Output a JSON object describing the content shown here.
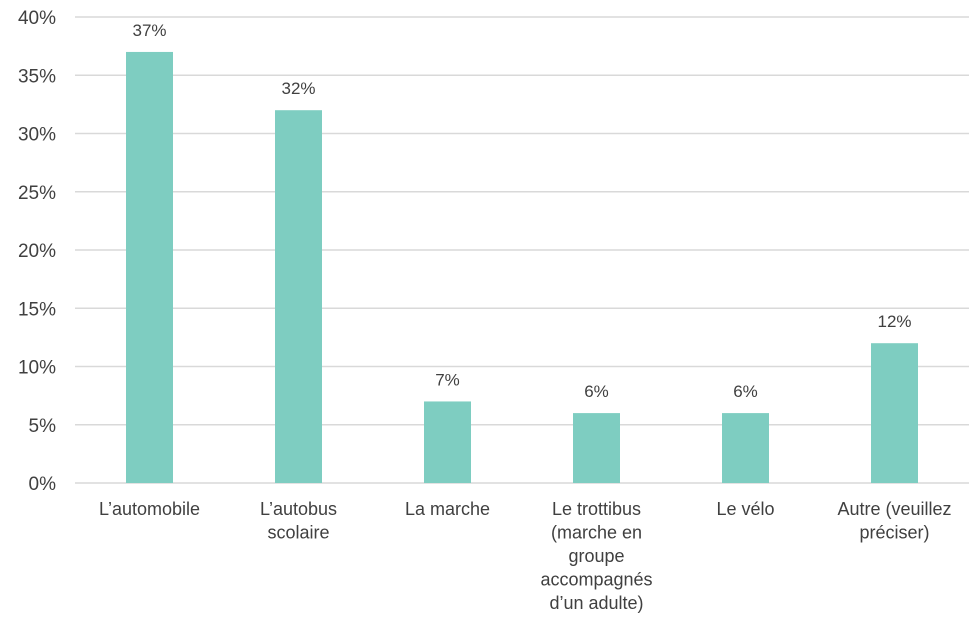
{
  "chart_data": {
    "type": "bar",
    "title": "",
    "xlabel": "",
    "ylabel": "",
    "categories": [
      [
        "L’automobile"
      ],
      [
        "L’autobus",
        "scolaire"
      ],
      [
        "La marche"
      ],
      [
        "Le trottibus",
        "(marche en",
        "groupe",
        "accompagnés",
        "d’un adulte)"
      ],
      [
        "Le vélo"
      ],
      [
        "Autre (veuillez",
        "préciser)"
      ]
    ],
    "values": [
      37,
      32,
      7,
      6,
      6,
      12
    ],
    "value_labels": [
      "37%",
      "32%",
      "7%",
      "6%",
      "6%",
      "12%"
    ],
    "ylim": [
      0,
      40
    ],
    "y_ticks": [
      0,
      5,
      10,
      15,
      20,
      25,
      30,
      35,
      40
    ],
    "y_tick_labels": [
      "0%",
      "5%",
      "10%",
      "15%",
      "20%",
      "25%",
      "30%",
      "35%",
      "40%"
    ],
    "grid": true,
    "legend": "none",
    "bar_color": "#7ecdc1"
  }
}
